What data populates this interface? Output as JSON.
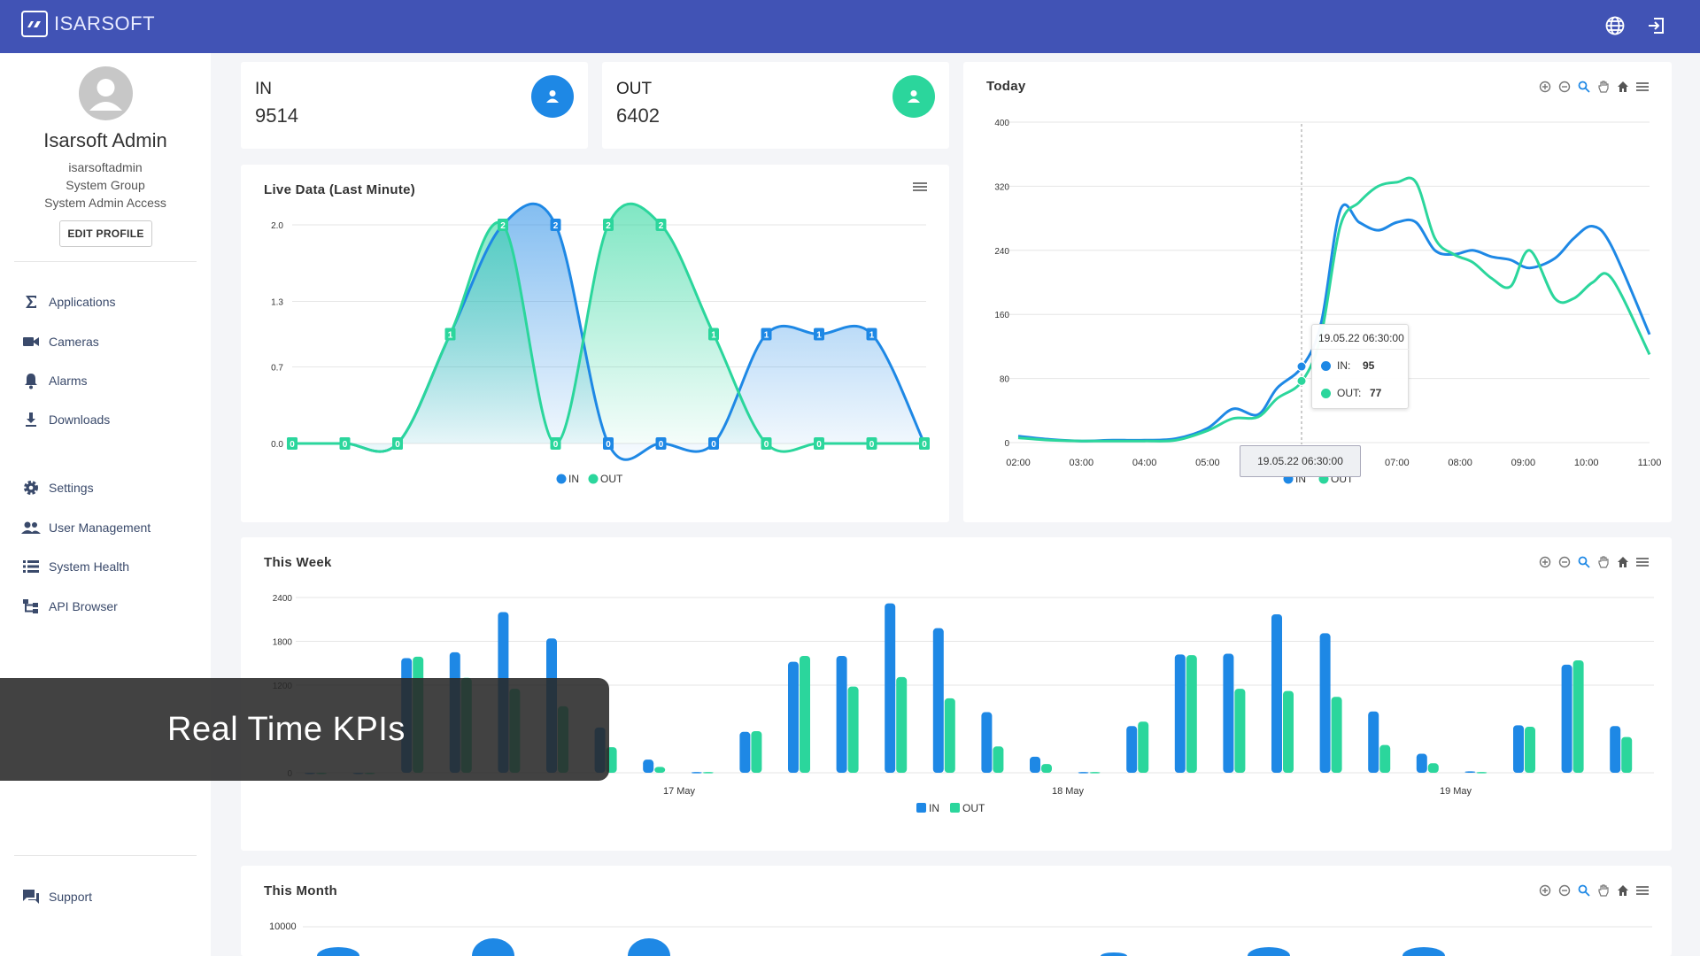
{
  "app": {
    "brand": "ISARSOFT",
    "colors": {
      "primary": "#4153b5",
      "in": "#1e88e5",
      "out": "#2bd69c"
    }
  },
  "header": {
    "icons": [
      "globe-icon",
      "logout-icon"
    ]
  },
  "profile": {
    "name": "Isarsoft Admin",
    "username": "isarsoftadmin",
    "group": "System Group",
    "access": "System Admin Access",
    "edit_label": "EDIT PROFILE"
  },
  "nav": {
    "items": [
      {
        "label": "Applications",
        "icon": "sigma-icon"
      },
      {
        "label": "Cameras",
        "icon": "video-camera-icon"
      },
      {
        "label": "Alarms",
        "icon": "bell-icon"
      },
      {
        "label": "Downloads",
        "icon": "download-icon"
      },
      {
        "label": "Settings",
        "icon": "gear-icon"
      },
      {
        "label": "User Management",
        "icon": "users-icon"
      },
      {
        "label": "System Health",
        "icon": "list-icon"
      },
      {
        "label": "API Browser",
        "icon": "tree-icon"
      }
    ],
    "support": {
      "label": "Support",
      "icon": "chat-icon"
    }
  },
  "kpis": {
    "in": {
      "label": "IN",
      "value": "9514",
      "icon": "person-icon"
    },
    "out": {
      "label": "OUT",
      "value": "6402",
      "icon": "person-icon"
    }
  },
  "live": {
    "title": "Live Data (Last Minute)",
    "chart_data": {
      "type": "area",
      "ylabels": [
        "2.0",
        "1.3",
        "0.7",
        "0.0"
      ],
      "ylim": [
        0,
        2
      ],
      "series": [
        {
          "name": "IN",
          "values": [
            0,
            0,
            0,
            1,
            2,
            2,
            0,
            0,
            0,
            1,
            1,
            1,
            0
          ]
        },
        {
          "name": "OUT",
          "values": [
            0,
            0,
            0,
            1,
            2,
            0,
            2,
            2,
            1,
            0,
            0,
            0,
            0
          ]
        }
      ],
      "legend": [
        "IN",
        "OUT"
      ]
    }
  },
  "today": {
    "title": "Today",
    "chart_data": {
      "type": "line",
      "xlabels": [
        "02:00",
        "03:00",
        "04:00",
        "05:00",
        "06:00",
        "07:00",
        "08:00",
        "09:00",
        "10:00",
        "11:00"
      ],
      "yticks": [
        0,
        80,
        160,
        240,
        320,
        400
      ],
      "ylim": [
        0,
        400
      ],
      "series": [
        {
          "name": "IN",
          "points": [
            [
              2.0,
              8
            ],
            [
              2.5,
              4
            ],
            [
              3.0,
              2
            ],
            [
              3.5,
              3
            ],
            [
              4.0,
              3
            ],
            [
              4.5,
              5
            ],
            [
              5.0,
              18
            ],
            [
              5.4,
              42
            ],
            [
              5.8,
              35
            ],
            [
              6.1,
              68
            ],
            [
              6.5,
              95
            ],
            [
              6.8,
              150
            ],
            [
              7.1,
              290
            ],
            [
              7.4,
              275
            ],
            [
              7.7,
              265
            ],
            [
              8.0,
              275
            ],
            [
              8.3,
              275
            ],
            [
              8.6,
              240
            ],
            [
              8.9,
              235
            ],
            [
              9.2,
              240
            ],
            [
              9.5,
              232
            ],
            [
              9.8,
              228
            ],
            [
              10.1,
              218
            ],
            [
              10.5,
              230
            ],
            [
              10.8,
              255
            ],
            [
              11.1,
              270
            ],
            [
              11.4,
              245
            ],
            [
              12.0,
              135
            ]
          ]
        },
        {
          "name": "OUT",
          "points": [
            [
              2.0,
              6
            ],
            [
              2.5,
              3
            ],
            [
              3.0,
              2
            ],
            [
              3.5,
              2
            ],
            [
              4.0,
              2
            ],
            [
              4.5,
              3
            ],
            [
              5.0,
              15
            ],
            [
              5.4,
              30
            ],
            [
              5.8,
              32
            ],
            [
              6.1,
              55
            ],
            [
              6.5,
              77
            ],
            [
              6.8,
              135
            ],
            [
              7.1,
              270
            ],
            [
              7.4,
              300
            ],
            [
              7.7,
              320
            ],
            [
              8.0,
              325
            ],
            [
              8.3,
              325
            ],
            [
              8.6,
              255
            ],
            [
              8.9,
              235
            ],
            [
              9.2,
              225
            ],
            [
              9.5,
              205
            ],
            [
              9.8,
              195
            ],
            [
              10.1,
              240
            ],
            [
              10.5,
              180
            ],
            [
              10.8,
              180
            ],
            [
              11.1,
              200
            ],
            [
              11.4,
              205
            ],
            [
              12.0,
              110
            ]
          ]
        }
      ],
      "legend": [
        "IN",
        "OUT"
      ],
      "tooltip": {
        "title": "19.05.22 06:30:00",
        "in_label": "IN:",
        "in_value": "95",
        "out_label": "OUT:",
        "out_value": "77"
      },
      "crosshair_label": "19.05.22 06:30:00"
    }
  },
  "week": {
    "title": "This Week",
    "chart_data": {
      "type": "bar",
      "ylabels": [
        "2400",
        "1800",
        "1200",
        "0"
      ],
      "yticks": [
        0,
        1200,
        1800,
        2400
      ],
      "ylim": [
        0,
        2400
      ],
      "xlabels": [
        "17 May",
        "18 May",
        "19 May"
      ],
      "series": [
        {
          "name": "IN",
          "values": [
            0,
            0,
            1570,
            1650,
            2200,
            1840,
            620,
            180,
            10,
            560,
            1520,
            1600,
            2320,
            1980,
            830,
            220,
            10,
            640,
            1620,
            1630,
            2170,
            1910,
            840,
            260,
            20,
            650,
            1480,
            640
          ]
        },
        {
          "name": "OUT",
          "values": [
            0,
            0,
            1590,
            1300,
            1150,
            910,
            350,
            80,
            10,
            570,
            1600,
            1180,
            1310,
            1020,
            360,
            120,
            10,
            700,
            1610,
            1150,
            1120,
            1040,
            380,
            130,
            10,
            630,
            1540,
            490
          ]
        }
      ],
      "legend": [
        "IN",
        "OUT"
      ]
    }
  },
  "month": {
    "title": "This Month",
    "ylabels": [
      "10000"
    ]
  },
  "overlay": {
    "text": "Real Time KPIs"
  }
}
